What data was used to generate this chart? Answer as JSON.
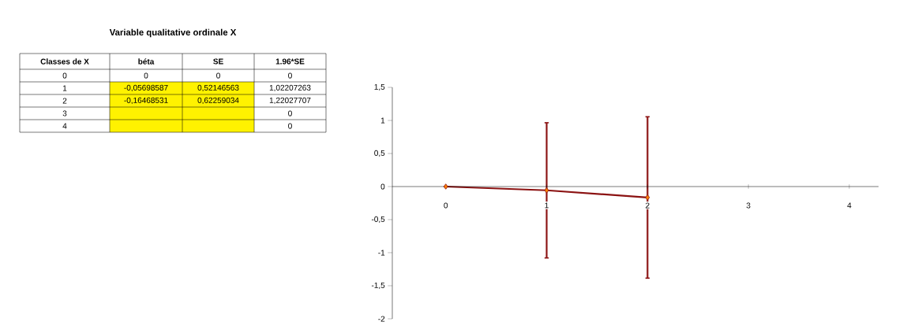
{
  "chart_data": {
    "type": "line",
    "title": "Variable qualitative ordinale X",
    "x": [
      0,
      1,
      2
    ],
    "values": [
      0,
      -0.05698587,
      -0.16468531
    ],
    "errors": [
      0,
      1.02207263,
      1.22027707
    ],
    "annotations": [
      "Classes de X",
      "béta",
      "SE",
      "1.96*SE",
      "0",
      "1",
      "2",
      "3",
      "4",
      "0",
      "-0,05698587",
      "-0,16468531",
      "0",
      "0,52146563",
      "0,62259034",
      "0",
      "1,02207263",
      "1,22027707",
      "0",
      "0"
    ],
    "color": "#8b1212",
    "marker": "diamond",
    "line_style": "solid",
    "xlim": [
      -0.53,
      4.29
    ],
    "xticks": [
      0,
      1,
      2,
      3,
      4
    ],
    "ylim": [
      -2,
      1.5
    ],
    "yticks": [
      -2,
      {
        "value": -1.5,
        "label": "-1,5"
      },
      -1,
      {
        "value": -0.5,
        "label": "-0,5"
      },
      0,
      {
        "value": 0.5,
        "label": "0,5"
      },
      1,
      {
        "value": 1.5,
        "label": "1,5"
      }
    ]
  }
}
